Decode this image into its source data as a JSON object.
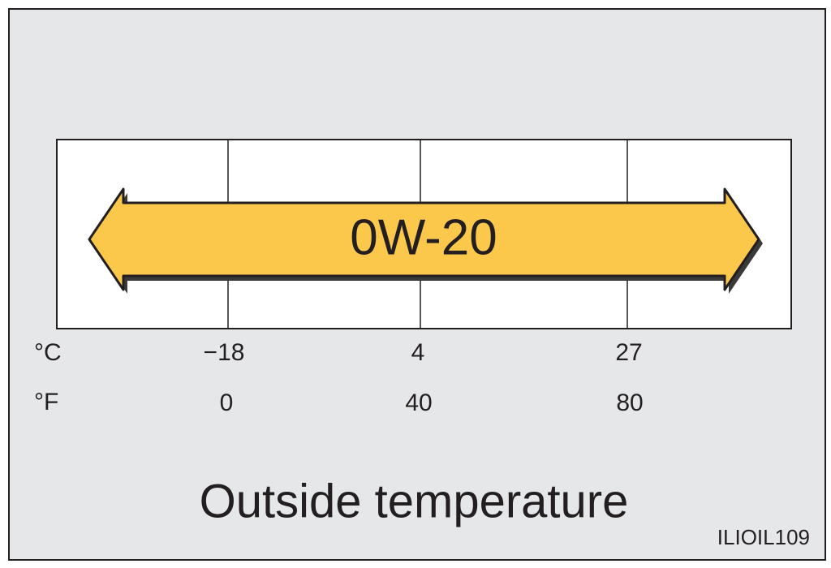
{
  "band": {
    "label": "0W-20"
  },
  "scale": {
    "celsius": {
      "unit": "°C",
      "ticks": [
        "−18",
        "4",
        "27"
      ]
    },
    "fahrenheit": {
      "unit": "°F",
      "ticks": [
        "0",
        "40",
        "80"
      ]
    }
  },
  "caption": "Outside temperature",
  "code": "ILIOIL109"
}
